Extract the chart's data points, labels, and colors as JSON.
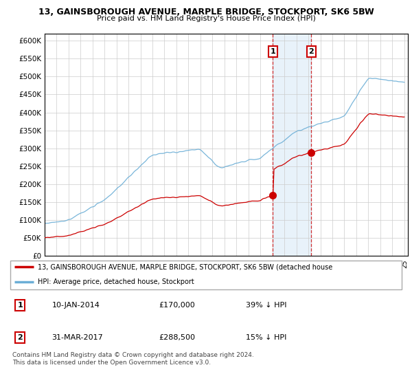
{
  "title": "13, GAINSBOROUGH AVENUE, MARPLE BRIDGE, STOCKPORT, SK6 5BW",
  "subtitle": "Price paid vs. HM Land Registry's House Price Index (HPI)",
  "ylim": [
    0,
    620000
  ],
  "sale1_year": 2014.04,
  "sale1_price": 170000,
  "sale2_year": 2017.25,
  "sale2_price": 288500,
  "hpi_color": "#6baed6",
  "price_color": "#cc0000",
  "legend1": "13, GAINSBOROUGH AVENUE, MARPLE BRIDGE, STOCKPORT, SK6 5BW (detached house",
  "legend2": "HPI: Average price, detached house, Stockport",
  "table_row1": [
    "1",
    "10-JAN-2014",
    "£170,000",
    "39% ↓ HPI"
  ],
  "table_row2": [
    "2",
    "31-MAR-2017",
    "£288,500",
    "15% ↓ HPI"
  ],
  "footnote": "Contains HM Land Registry data © Crown copyright and database right 2024.\nThis data is licensed under the Open Government Licence v3.0.",
  "shade_color": "#daeaf7"
}
